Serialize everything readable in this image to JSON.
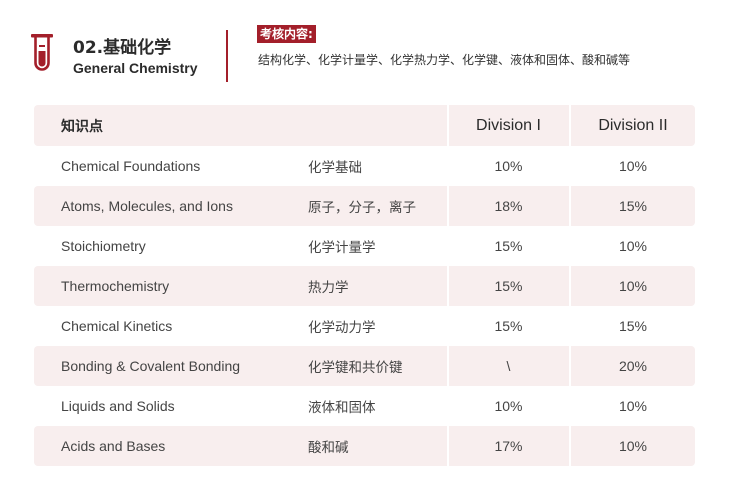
{
  "header": {
    "title_cn": "02.基础化学",
    "title_en": "General Chemistry",
    "badge": "考核内容:",
    "content": "结构化学、化学计量学、化学热力学、化学键、液体和固体、酸和碱等"
  },
  "colors": {
    "accent": "#a31f2a",
    "row_shade": "#f8eeee"
  },
  "table": {
    "headers": {
      "topic": "知识点",
      "division1": "Division I",
      "division2": "Division II"
    },
    "rows": [
      {
        "en": "Chemical Foundations",
        "zh": "化学基础",
        "d1": "10%",
        "d2": "10%"
      },
      {
        "en": "Atoms, Molecules, and Ions",
        "zh": "原子，分子，离子",
        "d1": "18%",
        "d2": "15%"
      },
      {
        "en": "Stoichiometry",
        "zh": "化学计量学",
        "d1": "15%",
        "d2": "10%"
      },
      {
        "en": "Thermochemistry",
        "zh": "热力学",
        "d1": "15%",
        "d2": "10%"
      },
      {
        "en": "Chemical Kinetics",
        "zh": "化学动力学",
        "d1": "15%",
        "d2": "15%"
      },
      {
        "en": "Bonding & Covalent Bonding",
        "zh": "化学键和共价键",
        "d1": "\\",
        "d2": "20%"
      },
      {
        "en": "Liquids and Solids",
        "zh": "液体和固体",
        "d1": "10%",
        "d2": "10%"
      },
      {
        "en": "Acids and Bases",
        "zh": "酸和碱",
        "d1": "17%",
        "d2": "10%"
      }
    ]
  }
}
